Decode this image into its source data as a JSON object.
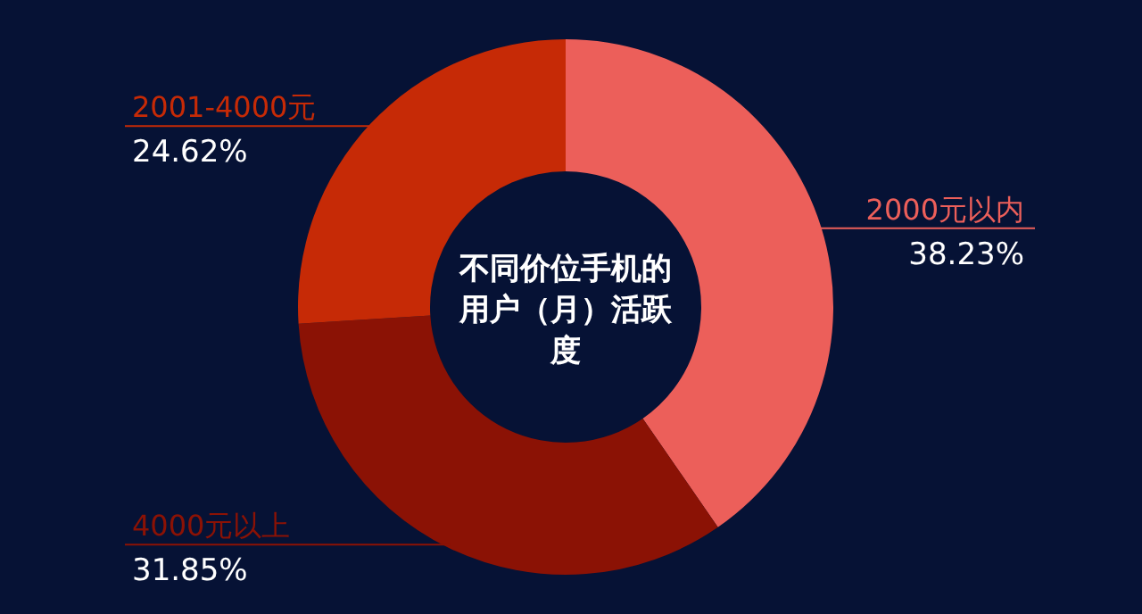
{
  "chart_data": {
    "type": "donut",
    "title": "不同价位手机的用户（月）活跃度",
    "categories": [
      "2000元以内",
      "4000元以上",
      "2001-4000元"
    ],
    "values": [
      38.23,
      31.85,
      24.62
    ],
    "value_labels": [
      "38.23%",
      "31.85%",
      "24.62%"
    ],
    "colors": [
      "#ec5f5a",
      "#8b1205",
      "#c62a06"
    ]
  }
}
